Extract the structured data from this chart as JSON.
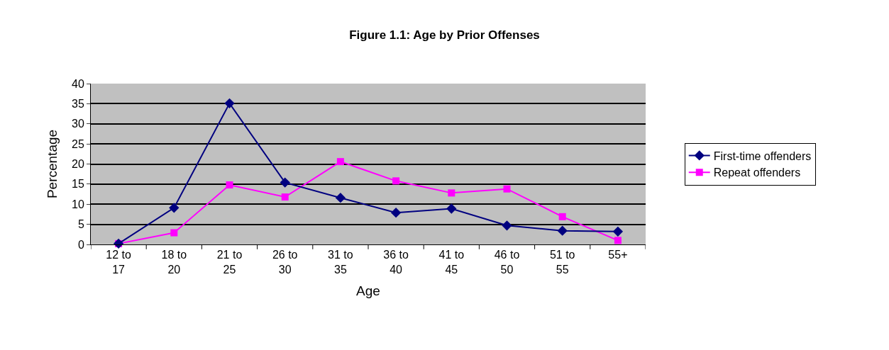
{
  "chart_data": {
    "type": "line",
    "title": "Figure 1.1: Age by Prior Offenses",
    "xlabel": "Age",
    "ylabel": "Percentage",
    "categories": [
      "12 to 17",
      "18 to 20",
      "21 to 25",
      "26 to 30",
      "31 to 35",
      "36 to 40",
      "41 to 45",
      "46 to 50",
      "51 to 55",
      "55+"
    ],
    "series": [
      {
        "name": "First-time offenders",
        "color": "#000080",
        "marker": "diamond",
        "values": [
          0.2,
          9.1,
          35.1,
          15.4,
          11.6,
          7.9,
          8.9,
          4.7,
          3.4,
          3.2
        ]
      },
      {
        "name": "Repeat offenders",
        "color": "#ff00ff",
        "marker": "square",
        "values": [
          0.2,
          2.9,
          14.8,
          11.8,
          20.6,
          15.8,
          12.8,
          13.8,
          6.9,
          1.0
        ]
      }
    ],
    "ylim": [
      0,
      40
    ],
    "yticks": [
      0,
      5,
      10,
      15,
      20,
      25,
      30,
      35,
      40
    ],
    "grid": "y",
    "legend": "right"
  }
}
